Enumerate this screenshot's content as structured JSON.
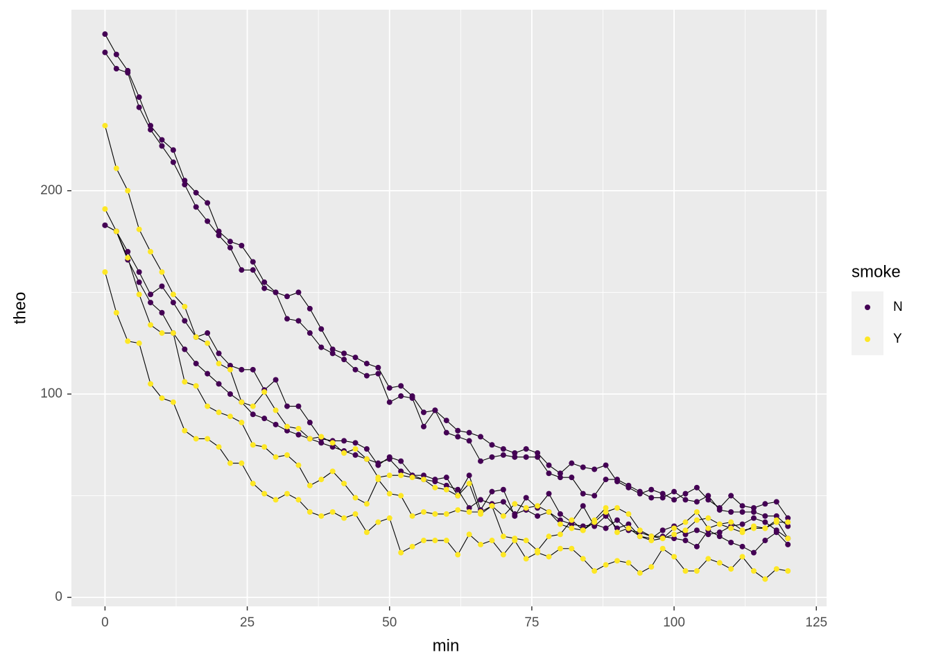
{
  "chart_data": {
    "type": "line",
    "x_label": "min",
    "y_label": "theo",
    "legend_title": "smoke",
    "x": [
      0,
      2,
      4,
      6,
      8,
      10,
      12,
      14,
      16,
      18,
      20,
      22,
      24,
      26,
      28,
      30,
      32,
      34,
      36,
      38,
      40,
      42,
      44,
      46,
      48,
      50,
      52,
      54,
      56,
      58,
      60,
      62,
      64,
      66,
      68,
      70,
      72,
      74,
      76,
      78,
      80,
      82,
      84,
      86,
      88,
      90,
      92,
      94,
      96,
      98,
      100,
      102,
      104,
      106,
      108,
      110,
      112,
      114,
      116,
      118,
      120
    ],
    "line_color": "#000000",
    "series": [
      {
        "name": "N",
        "color": "#440154",
        "values": [
          277,
          267,
          259,
          246,
          232,
          225,
          220,
          205,
          199,
          194,
          180,
          175,
          173,
          165,
          155,
          150,
          148,
          150,
          142,
          132,
          122,
          120,
          118,
          115,
          113,
          103,
          104,
          99,
          91,
          92,
          87,
          82,
          81,
          79,
          75,
          73,
          71,
          73,
          71,
          65,
          61,
          66,
          64,
          63,
          65,
          57,
          54,
          51,
          53,
          51,
          48,
          51,
          54,
          48,
          44,
          50,
          45,
          44,
          46,
          47,
          39
        ]
      },
      {
        "name": "N",
        "color": "#440154",
        "values": [
          268,
          260,
          258,
          241,
          230,
          222,
          214,
          203,
          192,
          185,
          178,
          172,
          161,
          161,
          152,
          150,
          137,
          136,
          130,
          123,
          120,
          117,
          112,
          109,
          110,
          96,
          99,
          98,
          84,
          92,
          81,
          79,
          77,
          67,
          69,
          70,
          69,
          69,
          69,
          61,
          59,
          59,
          51,
          50,
          58,
          58,
          55,
          52,
          49,
          49,
          52,
          48,
          47,
          50,
          43,
          42,
          42,
          42,
          40,
          40,
          35
        ]
      },
      {
        "name": "N",
        "color": "#440154",
        "values": [
          183,
          180,
          170,
          160,
          149,
          153,
          145,
          136,
          128,
          130,
          120,
          114,
          112,
          112,
          102,
          107,
          94,
          94,
          86,
          78,
          77,
          77,
          76,
          73,
          65,
          69,
          67,
          60,
          60,
          58,
          59,
          50,
          60,
          43,
          52,
          53,
          40,
          49,
          44,
          51,
          41,
          37,
          45,
          35,
          40,
          34,
          36,
          30,
          29,
          33,
          35,
          31,
          33,
          31,
          32,
          35,
          36,
          39,
          37,
          33,
          29
        ]
      },
      {
        "name": "N",
        "color": "#440154",
        "values": [
          183,
          180,
          166,
          155,
          145,
          140,
          130,
          122,
          115,
          110,
          105,
          100,
          96,
          90,
          88,
          85,
          82,
          80,
          78,
          76,
          74,
          72,
          70,
          68,
          66,
          68,
          62,
          60,
          58,
          57,
          55,
          53,
          44,
          48,
          46,
          47,
          41,
          43,
          40,
          42,
          38,
          36,
          35,
          36,
          34,
          38,
          33,
          32,
          30,
          30,
          29,
          28,
          25,
          33,
          30,
          27,
          25,
          22,
          28,
          32,
          26
        ]
      },
      {
        "name": "Y",
        "color": "#FDE725",
        "values": [
          232,
          211,
          200,
          181,
          170,
          160,
          149,
          143,
          128,
          125,
          115,
          112,
          96,
          94,
          101,
          92,
          84,
          83,
          78,
          79,
          76,
          71,
          73,
          68,
          59,
          60,
          60,
          59,
          58,
          54,
          53,
          50,
          56,
          41,
          45,
          40,
          46,
          44,
          45,
          42,
          36,
          34,
          33,
          37,
          42,
          44,
          41,
          33,
          30,
          29,
          31,
          33,
          38,
          39,
          36,
          37,
          33,
          34,
          34,
          37,
          37
        ]
      },
      {
        "name": "Y",
        "color": "#FDE725",
        "values": [
          191,
          180,
          167,
          149,
          134,
          130,
          130,
          106,
          104,
          94,
          91,
          89,
          86,
          75,
          74,
          69,
          70,
          65,
          55,
          58,
          62,
          56,
          49,
          46,
          58,
          51,
          50,
          40,
          42,
          41,
          41,
          43,
          42,
          42,
          45,
          30,
          29,
          28,
          23,
          30,
          31,
          38,
          33,
          38,
          44,
          32,
          34,
          30,
          28,
          29,
          34,
          37,
          42,
          34,
          36,
          34,
          32,
          35,
          34,
          38,
          29
        ]
      },
      {
        "name": "Y",
        "color": "#FDE725",
        "values": [
          160,
          140,
          126,
          125,
          105,
          98,
          96,
          82,
          78,
          78,
          74,
          66,
          66,
          56,
          51,
          48,
          51,
          48,
          42,
          40,
          42,
          39,
          41,
          32,
          37,
          39,
          22,
          25,
          28,
          28,
          28,
          21,
          31,
          26,
          28,
          21,
          28,
          19,
          22,
          20,
          24,
          24,
          19,
          13,
          16,
          18,
          17,
          12,
          15,
          24,
          20,
          13,
          13,
          19,
          17,
          14,
          20,
          13,
          9,
          14,
          13
        ]
      }
    ],
    "xlim": [
      -5.9,
      126.8
    ],
    "xticks": [
      0,
      25,
      50,
      75,
      100,
      125
    ],
    "ylim": [
      -4.4,
      289
    ],
    "yticks": [
      0,
      100,
      200
    ],
    "grid": true
  }
}
